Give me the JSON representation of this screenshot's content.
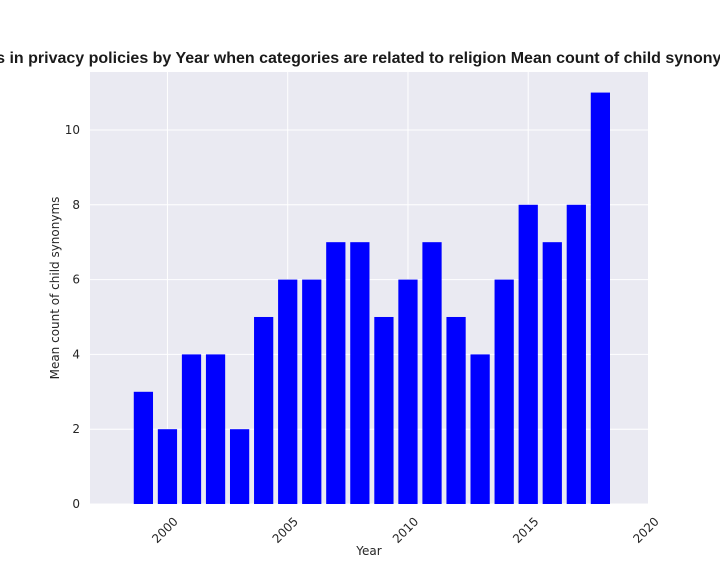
{
  "chart_data": {
    "type": "bar",
    "title": "Mean count of child synonyms in privacy policies by Year when categories are related to religion Mean count of child synonyms in privacy policies by Year",
    "xlabel": "Year",
    "ylabel": "Mean count of child synonyms",
    "categories": [
      1999,
      2000,
      2001,
      2002,
      2003,
      2004,
      2005,
      2006,
      2007,
      2008,
      2009,
      2010,
      2011,
      2012,
      2013,
      2014,
      2015,
      2016,
      2017,
      2018
    ],
    "values": [
      3,
      2,
      4,
      4,
      2,
      5,
      6,
      6,
      7,
      7,
      5,
      6,
      7,
      5,
      4,
      6,
      8,
      7,
      8,
      11
    ],
    "xlim": [
      1996.78,
      2019.98
    ],
    "ylim": [
      0,
      11.55
    ],
    "xticks": [
      2000,
      2005,
      2010,
      2015,
      2020
    ],
    "yticks": [
      0,
      2,
      4,
      6,
      8,
      10
    ],
    "bar_color": "#0000ff",
    "background_color": "#eaeaf2",
    "grid_color": "#ffffff",
    "grid": true
  }
}
